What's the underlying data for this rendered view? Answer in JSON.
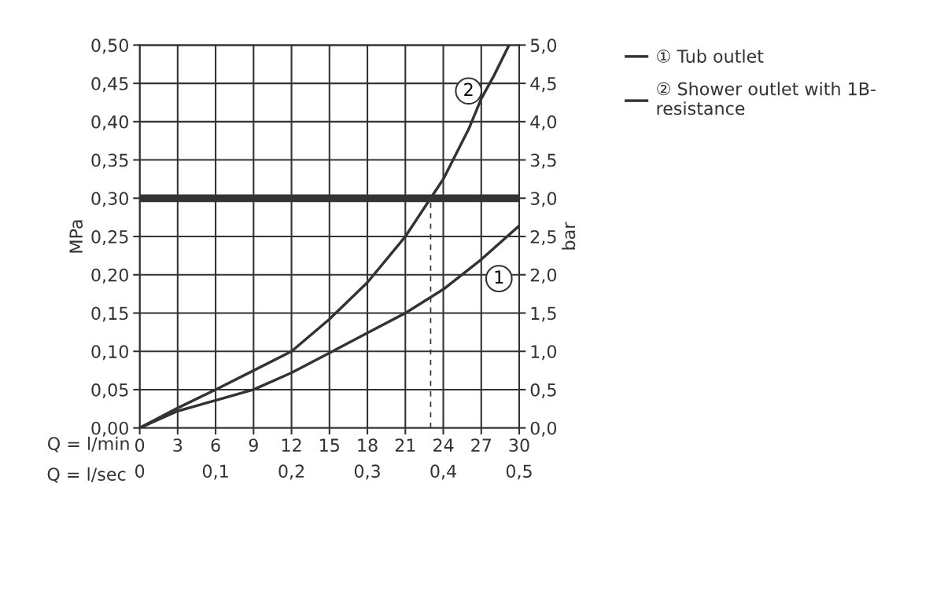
{
  "chart_data": {
    "type": "line",
    "xlabel": "Q = l/min",
    "x2label": "Q = l/sec",
    "ylabel": "MPa",
    "y2label": "bar",
    "series": [
      {
        "name": "① Tub outlet",
        "color": "#333333",
        "x": [
          0,
          3,
          6,
          9,
          12,
          15,
          18,
          21,
          24,
          27,
          30
        ],
        "values": [
          0,
          0.022,
          0.036,
          0.05,
          0.072,
          0.098,
          0.124,
          0.15,
          0.181,
          0.22,
          0.264
        ]
      },
      {
        "name": "② Shower outlet with 1B-\nresistance",
        "color": "#333333",
        "x": [
          0,
          3,
          6,
          9,
          12,
          15,
          18,
          21,
          23,
          24,
          26,
          27,
          28,
          29.2
        ],
        "values": [
          0,
          0.026,
          0.05,
          0.075,
          0.1,
          0.142,
          0.19,
          0.25,
          0.3,
          0.325,
          0.39,
          0.43,
          0.46,
          0.5
        ]
      },
      {
        "type": "line",
        "color": "#333333",
        "line_style": "dashed",
        "x": [
          23,
          23
        ],
        "values": [
          0,
          0.3
        ]
      }
    ],
    "ref_lines": [
      {
        "axis": "y",
        "value": 0.3,
        "color": "#333333"
      }
    ],
    "annotations": [
      {
        "text": "1",
        "x": 28.4,
        "y": 0.195
      },
      {
        "text": "2",
        "x": 26.0,
        "y": 0.44
      }
    ],
    "xlim": [
      0,
      30
    ],
    "xticks": [
      0,
      3,
      6,
      9,
      12,
      15,
      18,
      21,
      24,
      27,
      30
    ],
    "x2lim": [
      0,
      0.5
    ],
    "x2ticks": [
      0,
      {
        "value": 0.1,
        "label": "0,1"
      },
      {
        "value": 0.2,
        "label": "0,2"
      },
      {
        "value": 0.3,
        "label": "0,3"
      },
      {
        "value": 0.4,
        "label": "0,4"
      },
      {
        "value": 0.5,
        "label": "0,5"
      }
    ],
    "ylim": [
      0,
      0.5
    ],
    "yticks": [
      {
        "value": 0,
        "label": "0,00"
      },
      {
        "value": 0.05,
        "label": "0,05"
      },
      {
        "value": 0.1,
        "label": "0,10"
      },
      {
        "value": 0.15,
        "label": "0,15"
      },
      {
        "value": 0.2,
        "label": "0,20"
      },
      {
        "value": 0.25,
        "label": "0,25"
      },
      {
        "value": 0.3,
        "label": "0,30"
      },
      {
        "value": 0.35,
        "label": "0,35"
      },
      {
        "value": 0.4,
        "label": "0,40"
      },
      {
        "value": 0.45,
        "label": "0,45"
      },
      {
        "value": 0.5,
        "label": "0,50"
      }
    ],
    "y2lim": [
      0,
      5
    ],
    "y2ticks": [
      {
        "value": 0,
        "label": "0,0"
      },
      {
        "value": 0.5,
        "label": "0,5"
      },
      {
        "value": 1,
        "label": "1,0"
      },
      {
        "value": 1.5,
        "label": "1,5"
      },
      {
        "value": 2,
        "label": "2,0"
      },
      {
        "value": 2.5,
        "label": "2,5"
      },
      {
        "value": 3,
        "label": "3,0"
      },
      {
        "value": 3.5,
        "label": "3,5"
      },
      {
        "value": 4,
        "label": "4,0"
      },
      {
        "value": 4.5,
        "label": "4,5"
      },
      {
        "value": 5,
        "label": "5,0"
      }
    ],
    "grid": true,
    "legend": "top right",
    "marker": "none",
    "line_style": "solid"
  }
}
